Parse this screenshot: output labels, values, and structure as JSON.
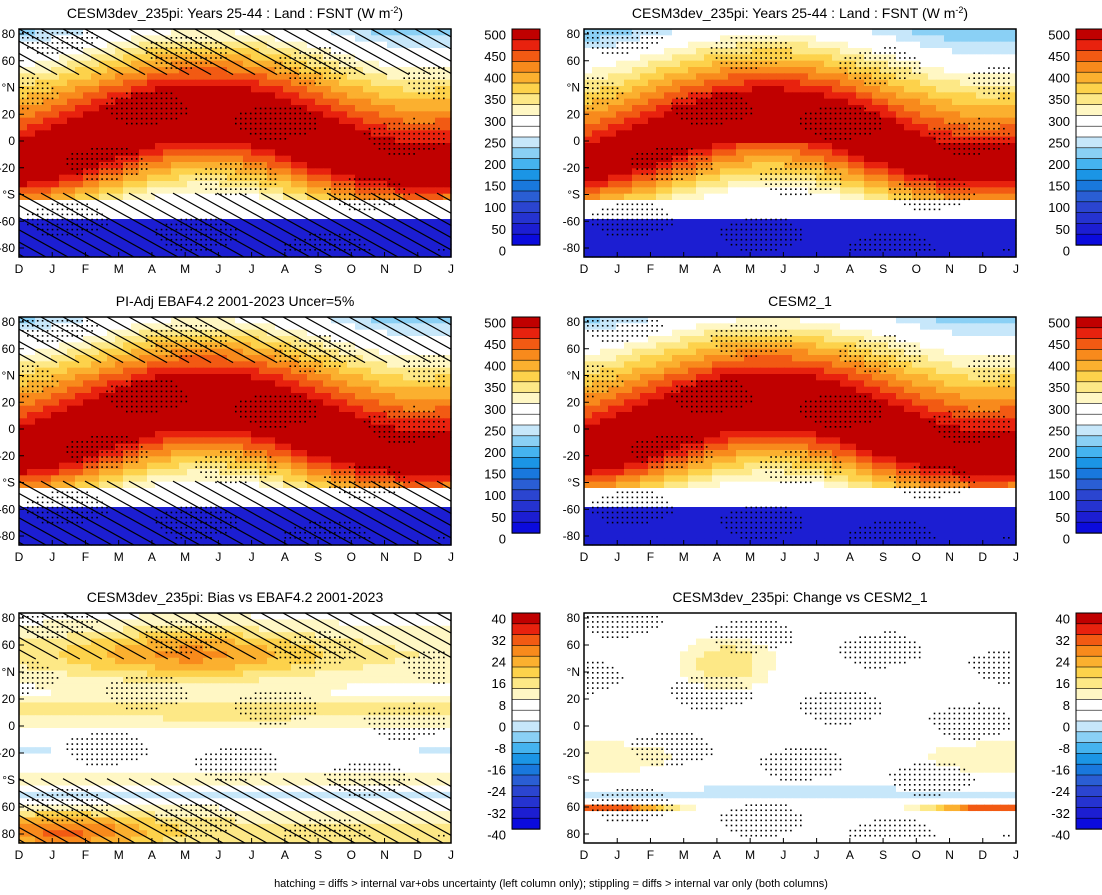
{
  "chart_data": [
    {
      "type": "heatmap",
      "title": "CESM3dev_235pi: Years 25-44 : Land : FSNT (W m",
      "title_sup": "-2",
      "title_close": ")",
      "months": [
        "D",
        "J",
        "F",
        "M",
        "A",
        "M",
        "J",
        "J",
        "A",
        "S",
        "O",
        "N",
        "D",
        "J"
      ],
      "lat_ticks": [
        "80",
        "60",
        "°N",
        "20",
        "0",
        "-20",
        "°S",
        "-60",
        "-80"
      ],
      "colorbar": {
        "labels": [
          "500",
          "450",
          "400",
          "350",
          "300",
          "250",
          "200",
          "150",
          "100",
          "50",
          "0"
        ],
        "colors": [
          "#c00000",
          "#e8220e",
          "#f25a13",
          "#f88a1c",
          "#fbb02f",
          "#fdd24b",
          "#fde886",
          "#fff7c4",
          "#ffffff",
          "#ffffff",
          "#c7e7fa",
          "#8ad0f5",
          "#45b3ef",
          "#1b95e5",
          "#1978dd",
          "#2a5ed4",
          "#2b45d0",
          "#2533d0",
          "#1c1ed2",
          "#0b0bdd"
        ]
      },
      "hatching": true,
      "stippling": true
    },
    {
      "type": "heatmap",
      "title": "CESM3dev_235pi: Years 25-44 : Land : FSNT (W m",
      "title_sup": "-2",
      "title_close": ")",
      "months": [
        "D",
        "J",
        "F",
        "M",
        "A",
        "M",
        "J",
        "J",
        "A",
        "S",
        "O",
        "N",
        "D",
        "J"
      ],
      "lat_ticks": [
        "80",
        "60",
        "°N",
        "20",
        "0",
        "-20",
        "°S",
        "-60",
        "-80"
      ],
      "colorbar": {
        "labels": [
          "500",
          "450",
          "400",
          "350",
          "300",
          "250",
          "200",
          "150",
          "100",
          "50",
          "0"
        ],
        "colors": [
          "#c00000",
          "#e8220e",
          "#f25a13",
          "#f88a1c",
          "#fbb02f",
          "#fdd24b",
          "#fde886",
          "#fff7c4",
          "#ffffff",
          "#ffffff",
          "#c7e7fa",
          "#8ad0f5",
          "#45b3ef",
          "#1b95e5",
          "#1978dd",
          "#2a5ed4",
          "#2b45d0",
          "#2533d0",
          "#1c1ed2",
          "#0b0bdd"
        ]
      },
      "hatching": false,
      "stippling": true
    },
    {
      "type": "heatmap",
      "title": "PI-Adj EBAF4.2 2001-2023 Uncer=5%",
      "months": [
        "D",
        "J",
        "F",
        "M",
        "A",
        "M",
        "J",
        "J",
        "A",
        "S",
        "O",
        "N",
        "D",
        "J"
      ],
      "lat_ticks": [
        "80",
        "60",
        "°N",
        "20",
        "0",
        "-20",
        "°S",
        "-60",
        "-80"
      ],
      "colorbar": {
        "labels": [
          "500",
          "450",
          "400",
          "350",
          "300",
          "250",
          "200",
          "150",
          "100",
          "50",
          "0"
        ],
        "colors": [
          "#c00000",
          "#e8220e",
          "#f25a13",
          "#f88a1c",
          "#fbb02f",
          "#fdd24b",
          "#fde886",
          "#fff7c4",
          "#ffffff",
          "#ffffff",
          "#c7e7fa",
          "#8ad0f5",
          "#45b3ef",
          "#1b95e5",
          "#1978dd",
          "#2a5ed4",
          "#2b45d0",
          "#2533d0",
          "#1c1ed2",
          "#0b0bdd"
        ]
      },
      "hatching": true,
      "stippling": true
    },
    {
      "type": "heatmap",
      "title": "CESM2_1",
      "months": [
        "D",
        "J",
        "F",
        "M",
        "A",
        "M",
        "J",
        "J",
        "A",
        "S",
        "O",
        "N",
        "D",
        "J"
      ],
      "lat_ticks": [
        "80",
        "60",
        "°N",
        "20",
        "0",
        "-20",
        "°S",
        "-60",
        "-80"
      ],
      "colorbar": {
        "labels": [
          "500",
          "450",
          "400",
          "350",
          "300",
          "250",
          "200",
          "150",
          "100",
          "50",
          "0"
        ],
        "colors": [
          "#c00000",
          "#e8220e",
          "#f25a13",
          "#f88a1c",
          "#fbb02f",
          "#fdd24b",
          "#fde886",
          "#fff7c4",
          "#ffffff",
          "#ffffff",
          "#c7e7fa",
          "#8ad0f5",
          "#45b3ef",
          "#1b95e5",
          "#1978dd",
          "#2a5ed4",
          "#2b45d0",
          "#2533d0",
          "#1c1ed2",
          "#0b0bdd"
        ]
      },
      "hatching": false,
      "stippling": true
    },
    {
      "type": "heatmap",
      "title": "CESM3dev_235pi: Bias vs EBAF4.2 2001-2023",
      "months": [
        "D",
        "J",
        "F",
        "M",
        "A",
        "M",
        "J",
        "J",
        "A",
        "S",
        "O",
        "N",
        "D",
        "J"
      ],
      "lat_ticks": [
        "80",
        "60",
        "°N",
        "20",
        "0",
        "-20",
        "°S",
        "60",
        "80"
      ],
      "colorbar": {
        "labels": [
          "40",
          "32",
          "24",
          "16",
          "8",
          "0",
          "-8",
          "-16",
          "-24",
          "-32",
          "-40"
        ],
        "colors": [
          "#c00000",
          "#e8220e",
          "#f25a13",
          "#f88a1c",
          "#fbb02f",
          "#fdd24b",
          "#fde886",
          "#fff7c4",
          "#ffffff",
          "#ffffff",
          "#c7e7fa",
          "#8ad0f5",
          "#45b3ef",
          "#1b95e5",
          "#1978dd",
          "#2a5ed4",
          "#2b45d0",
          "#2533d0",
          "#1c1ed2",
          "#0b0bdd"
        ]
      },
      "hatching": true,
      "stippling": true
    },
    {
      "type": "heatmap",
      "title": "CESM3dev_235pi: Change vs CESM2_1",
      "months": [
        "D",
        "J",
        "F",
        "M",
        "A",
        "M",
        "J",
        "J",
        "A",
        "S",
        "O",
        "N",
        "D",
        "J"
      ],
      "lat_ticks": [
        "80",
        "60",
        "°N",
        "20",
        "0",
        "-20",
        "°S",
        "60",
        "80"
      ],
      "colorbar": {
        "labels": [
          "40",
          "32",
          "24",
          "16",
          "8",
          "0",
          "-8",
          "-16",
          "-24",
          "-32",
          "-40"
        ],
        "colors": [
          "#c00000",
          "#e8220e",
          "#f25a13",
          "#f88a1c",
          "#fbb02f",
          "#fdd24b",
          "#fde886",
          "#fff7c4",
          "#ffffff",
          "#ffffff",
          "#c7e7fa",
          "#8ad0f5",
          "#45b3ef",
          "#1b95e5",
          "#1978dd",
          "#2a5ed4",
          "#2b45d0",
          "#2533d0",
          "#1c1ed2",
          "#0b0bdd"
        ]
      },
      "hatching": false,
      "stippling": true
    }
  ],
  "footnote": "hatching = diffs > internal var+obs uncertainty (left column only); stippling = diffs > internal var only (both columns)"
}
